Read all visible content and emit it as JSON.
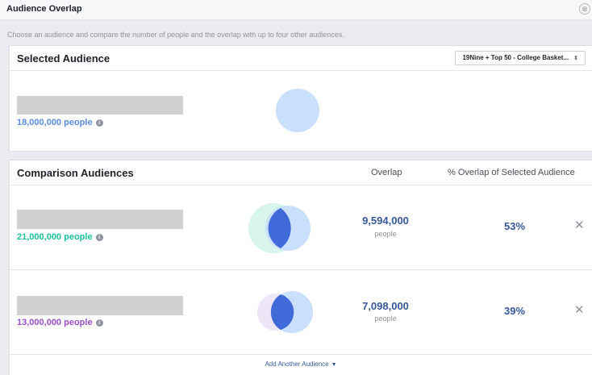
{
  "dialog": {
    "title": "Audience Overlap",
    "description": "Choose an audience and compare the number of people and the overlap with up to four other audiences."
  },
  "selected": {
    "heading": "Selected Audience",
    "dropdown_value": "19Nine + Top 50 - College Basket...",
    "count": "18,000,000 people"
  },
  "comparison": {
    "heading": "Comparison Audiences",
    "col_overlap": "Overlap",
    "col_percent": "% Overlap of Selected Audience",
    "rows": [
      {
        "count": "21,000,000 people",
        "overlap": "9,594,000",
        "overlap_label": "people",
        "percent": "53%",
        "color": "#1bbf9e"
      },
      {
        "count": "13,000,000 people",
        "overlap": "7,098,000",
        "overlap_label": "people",
        "percent": "39%",
        "color": "#9b4fc6"
      }
    ],
    "add_label": "Add Another Audience"
  },
  "icons": {
    "close": "close-icon",
    "remove": "remove-x-icon",
    "info": "info-icon",
    "dropdown": "dropdown-arrow-icon",
    "caret": "caret-down-icon"
  },
  "colors": {
    "selected_circle": "#c9dffb",
    "overlap_fill": "#3f6ad8",
    "link": "#365899"
  }
}
